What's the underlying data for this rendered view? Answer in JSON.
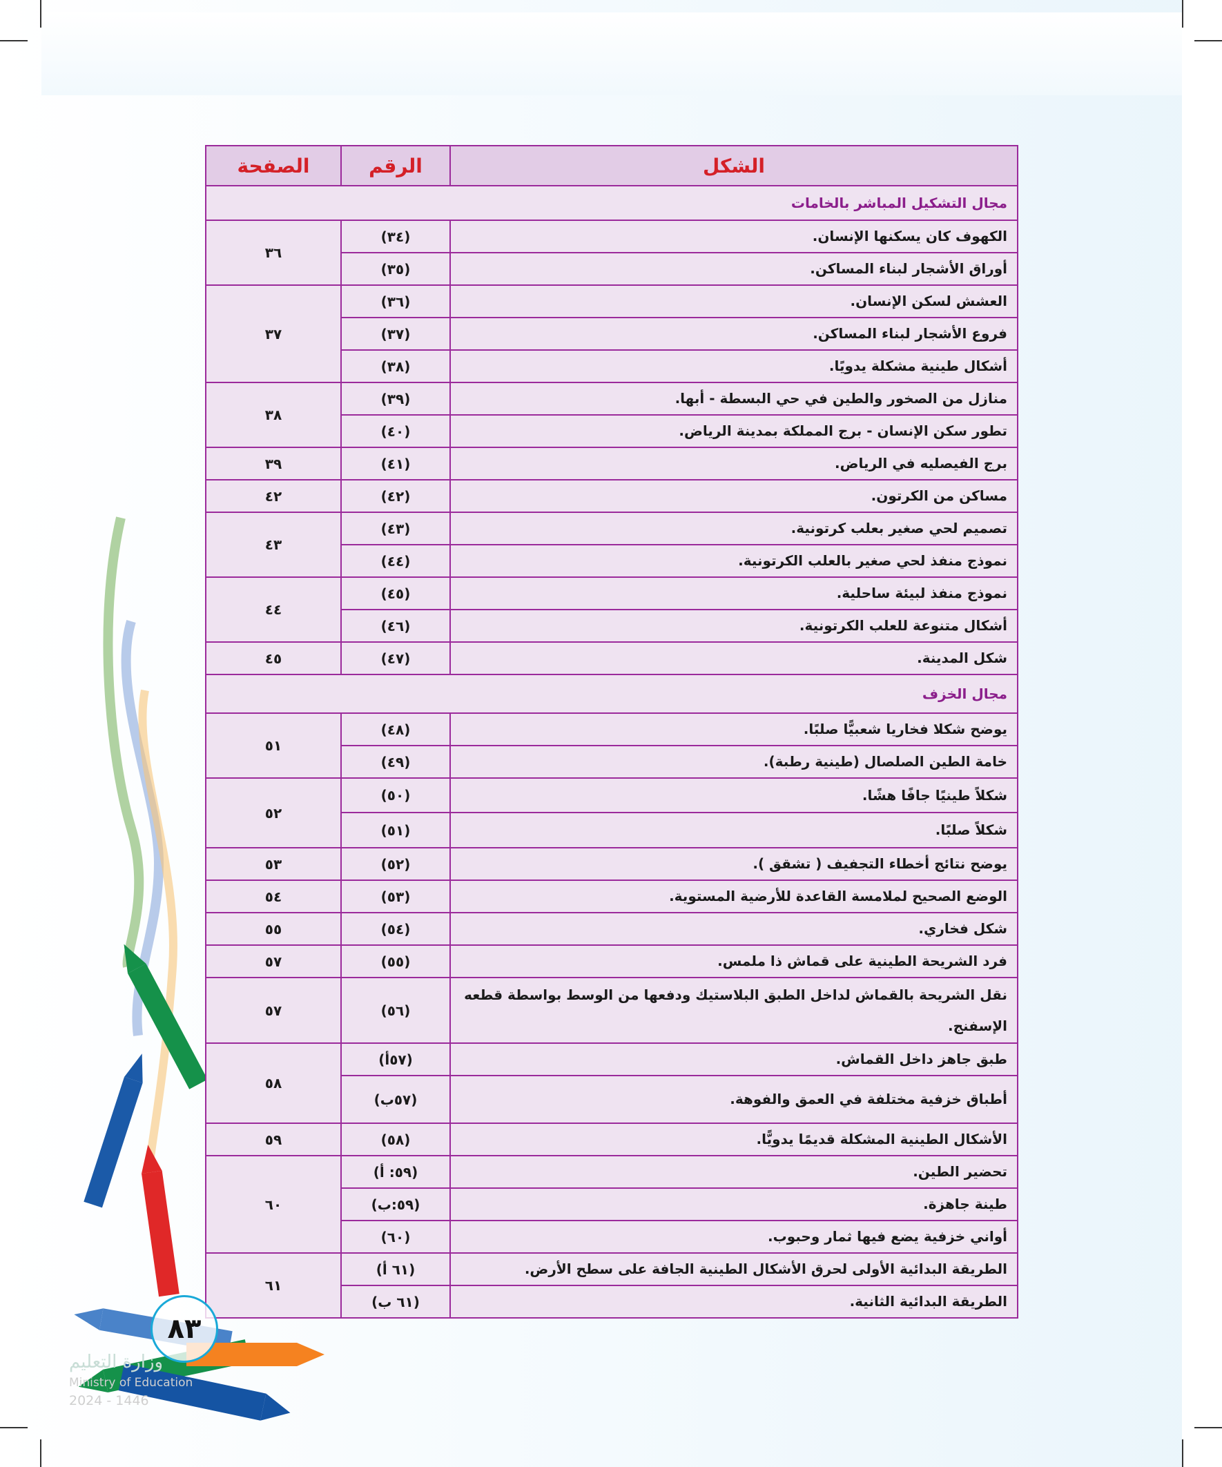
{
  "header": {
    "shape": "الشكل",
    "number": "الرقم",
    "page": "الصفحة"
  },
  "sections": [
    {
      "title": "مجال التشكيل المباشر بالخامات",
      "groups": [
        {
          "page": "٣٦",
          "rows": [
            {
              "num": "(٣٤)",
              "shape": "الكهوف كان يسكنها الإنسان."
            },
            {
              "num": "(٣٥)",
              "shape": "أوراق الأشجار لبناء المساكن."
            }
          ]
        },
        {
          "page": "٣٧",
          "rows": [
            {
              "num": "(٣٦)",
              "shape": "العشش لسكن الإنسان."
            },
            {
              "num": "(٣٧)",
              "shape": "فروع الأشجار لبناء المساكن."
            },
            {
              "num": "(٣٨)",
              "shape": "أشكال طينية مشكلة يدويًا."
            }
          ]
        },
        {
          "page": "٣٨",
          "rows": [
            {
              "num": "(٣٩)",
              "shape": "منازل من الصخور والطين في حي البسطة - أبها."
            },
            {
              "num": "(٤٠)",
              "shape": "تطور سكن الإنسان - برج المملكة بمدينة الرياض."
            }
          ]
        },
        {
          "page": "٣٩",
          "rows": [
            {
              "num": "(٤١)",
              "shape": "برج الفيصليه في الرياض."
            }
          ]
        },
        {
          "page": "٤٢",
          "rows": [
            {
              "num": "(٤٢)",
              "shape": "مساكن من الكرتون."
            }
          ]
        },
        {
          "page": "٤٣",
          "rows": [
            {
              "num": "(٤٣)",
              "shape": "تصميم لحي صغير بعلب كرتونية."
            },
            {
              "num": "(٤٤)",
              "shape": "نموذج منفذ لحي صغير بالعلب الكرتونية."
            }
          ]
        },
        {
          "page": "٤٤",
          "rows": [
            {
              "num": "(٤٥)",
              "shape": "نموذج منفذ لبيئة ساحلية."
            },
            {
              "num": "(٤٦)",
              "shape": "أشكال متنوعة للعلب الكرتونية."
            }
          ]
        },
        {
          "page": "٤٥",
          "rows": [
            {
              "num": "(٤٧)",
              "shape": "شكل المدينة."
            }
          ]
        }
      ]
    },
    {
      "title": "مجال الخزف",
      "groups": [
        {
          "page": "٥١",
          "rows": [
            {
              "num": "(٤٨)",
              "shape": "يوضح شكلا فخاريا شعبيًّا صلبًا."
            },
            {
              "num": "(٤٩)",
              "shape": "خامة الطين الصلصال (طينية رطبة)."
            }
          ]
        },
        {
          "page": "٥٢",
          "rows": [
            {
              "num": "(٥٠)",
              "shape": "شكلاً طينيًا جافًا هشًا."
            },
            {
              "num": "(٥١)",
              "shape": "شكلاً صلبًا."
            }
          ]
        },
        {
          "page": "٥٣",
          "rows": [
            {
              "num": "(٥٢)",
              "shape": "يوضح نتائج أخطاء التجفيف ( تشقق )."
            }
          ]
        },
        {
          "page": "٥٤",
          "rows": [
            {
              "num": "(٥٣)",
              "shape": "الوضع الصحيح لملامسة القاعدة للأرضية المستوية."
            }
          ]
        },
        {
          "page": "٥٥",
          "rows": [
            {
              "num": "(٥٤)",
              "shape": "شكل فخاري."
            }
          ]
        },
        {
          "page": "٥٧",
          "rows": [
            {
              "num": "(٥٥)",
              "shape": "فرد الشريحة الطينية على قماش ذا ملمس."
            }
          ]
        },
        {
          "page": "٥٧",
          "rows": [
            {
              "num": "(٥٦)",
              "shape": "نقل الشريحة بالقماش لداخل الطبق البلاستيك ودفعها من الوسط بواسطة قطعه الإسفنج."
            }
          ]
        },
        {
          "page": "٥٨",
          "rows": [
            {
              "num": "(٥٧أ)",
              "shape": "طبق جاهز داخل القماش."
            },
            {
              "num": "(٥٧ب)",
              "shape": "أطباق خزفية مختلفة في العمق والفوهة."
            }
          ]
        },
        {
          "page": "٥٩",
          "rows": [
            {
              "num": "(٥٨)",
              "shape": "الأشكال الطينية المشكلة قديمًا يدويًّا."
            }
          ]
        },
        {
          "page": "٦٠",
          "rows": [
            {
              "num": "(٥٩: أ)",
              "shape": "تحضير الطين."
            },
            {
              "num": "(٥٩:ب)",
              "shape": "طينة جاهزة."
            },
            {
              "num": "(٦٠)",
              "shape": "أواني خزفية يضع فيها ثمار وحبوب."
            }
          ]
        },
        {
          "page": "٦١",
          "rows": [
            {
              "num": "(٦١ أ)",
              "shape": "الطريقة البدائية الأولى لحرق الأشكال الطينية الجافة على سطح الأرض."
            },
            {
              "num": "(٦١ ب)",
              "shape": "الطريقة البدائية الثانية."
            }
          ]
        }
      ]
    }
  ],
  "page_number": "٨٣",
  "watermark": {
    "arabic": "وزارة التعليم",
    "english": "Ministry of Education",
    "year": "2024 - 1446"
  },
  "colors": {
    "border": "#9b2a9b",
    "header_bg": "#e2cce6",
    "body_bg": "#efe3f1",
    "header_text": "#d42027",
    "section_text": "#8b1e8b"
  }
}
